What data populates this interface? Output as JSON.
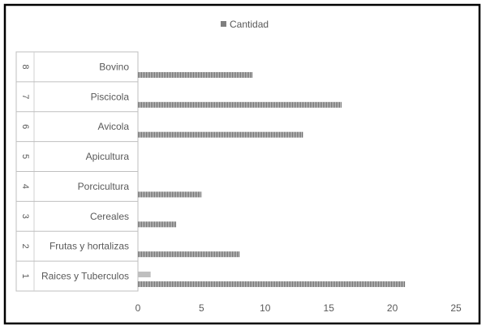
{
  "chart_data": {
    "type": "bar",
    "orientation": "horizontal",
    "legend": {
      "label": "Cantidad",
      "placement": "top-center"
    },
    "categories": [
      {
        "index": "1",
        "label": "Raices y Tuberculos"
      },
      {
        "index": "2",
        "label": "Frutas y hortalizas"
      },
      {
        "index": "3",
        "label": "Cereales"
      },
      {
        "index": "4",
        "label": "Porcicultura"
      },
      {
        "index": "5",
        "label": "Apicultura"
      },
      {
        "index": "6",
        "label": "Avicola"
      },
      {
        "index": "7",
        "label": "Piscicola"
      },
      {
        "index": "8",
        "label": "Bovino"
      }
    ],
    "series": [
      {
        "name": "Cantidad",
        "values": [
          21,
          8,
          3,
          5,
          0,
          13,
          16,
          9
        ],
        "color": "#7f7f7f"
      },
      {
        "values": [
          1,
          0,
          0,
          0,
          0,
          0,
          0,
          0
        ],
        "color": "#bfbfbf"
      }
    ],
    "xlim": [
      0,
      25
    ],
    "x_ticks": [
      "0",
      "5",
      "10",
      "15",
      "20",
      "25"
    ],
    "grid": false
  }
}
